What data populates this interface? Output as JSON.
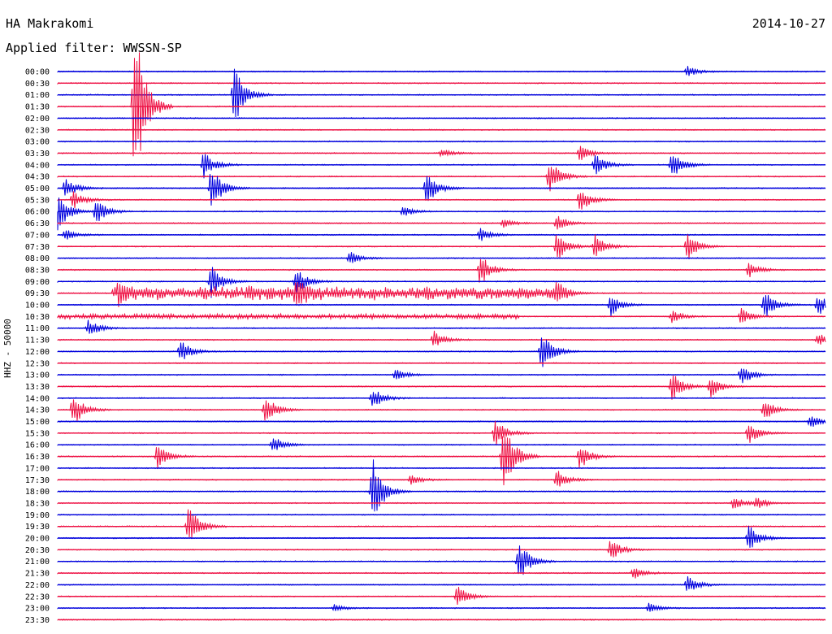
{
  "header": {
    "station": "HA Makrakomi",
    "date": "2014-10-27",
    "filter": "Applied filter: WWSSN-SP"
  },
  "chart_data": {
    "type": "line",
    "ylabel": "HHZ - 50000",
    "row_labels": [
      "00:00",
      "00:30",
      "01:00",
      "01:30",
      "02:00",
      "02:30",
      "03:00",
      "03:30",
      "04:00",
      "04:30",
      "05:00",
      "05:30",
      "06:00",
      "06:30",
      "07:00",
      "07:30",
      "08:00",
      "08:30",
      "09:00",
      "09:30",
      "10:00",
      "10:30",
      "11:00",
      "11:30",
      "12:00",
      "12:30",
      "13:00",
      "13:30",
      "14:00",
      "14:30",
      "15:00",
      "15:30",
      "16:00",
      "16:30",
      "17:00",
      "17:30",
      "18:00",
      "18:30",
      "19:00",
      "19:30",
      "20:00",
      "20:30",
      "21:00",
      "21:30",
      "22:00",
      "22:30",
      "23:00",
      "23:30"
    ],
    "colors": [
      "#0000dd",
      "#ee1144"
    ],
    "events": [
      {
        "row": 0,
        "x": 0.82,
        "amp": 0.5
      },
      {
        "row": 2,
        "x": 0.23,
        "amp": 3.0
      },
      {
        "row": 3,
        "x": 0.1,
        "amp": 8.0
      },
      {
        "row": 7,
        "x": 0.5,
        "amp": 0.4
      },
      {
        "row": 7,
        "x": 0.68,
        "amp": 0.7
      },
      {
        "row": 8,
        "x": 0.19,
        "amp": 1.2
      },
      {
        "row": 8,
        "x": 0.7,
        "amp": 1.0
      },
      {
        "row": 8,
        "x": 0.8,
        "amp": 1.3
      },
      {
        "row": 9,
        "x": 0.64,
        "amp": 1.6
      },
      {
        "row": 10,
        "x": 0.01,
        "amp": 1.0
      },
      {
        "row": 10,
        "x": 0.2,
        "amp": 2.0
      },
      {
        "row": 10,
        "x": 0.48,
        "amp": 1.7
      },
      {
        "row": 11,
        "x": 0.02,
        "amp": 0.8
      },
      {
        "row": 11,
        "x": 0.68,
        "amp": 1.1
      },
      {
        "row": 12,
        "x": 0.0,
        "amp": 1.8
      },
      {
        "row": 12,
        "x": 0.05,
        "amp": 1.2
      },
      {
        "row": 12,
        "x": 0.45,
        "amp": 0.5
      },
      {
        "row": 13,
        "x": 0.58,
        "amp": 0.4
      },
      {
        "row": 13,
        "x": 0.65,
        "amp": 0.8
      },
      {
        "row": 14,
        "x": 0.01,
        "amp": 0.5
      },
      {
        "row": 14,
        "x": 0.55,
        "amp": 0.6
      },
      {
        "row": 15,
        "x": 0.65,
        "amp": 1.3
      },
      {
        "row": 15,
        "x": 0.7,
        "amp": 1.1
      },
      {
        "row": 15,
        "x": 0.82,
        "amp": 1.2
      },
      {
        "row": 16,
        "x": 0.38,
        "amp": 0.6
      },
      {
        "row": 17,
        "x": 0.55,
        "amp": 1.5
      },
      {
        "row": 17,
        "x": 0.9,
        "amp": 0.7
      },
      {
        "row": 18,
        "x": 0.2,
        "amp": 1.4
      },
      {
        "row": 18,
        "x": 0.31,
        "amp": 1.3
      },
      {
        "row": 19,
        "x": 0.08,
        "amp": 0.9
      },
      {
        "row": 19,
        "x": 0.31,
        "amp": 1.0
      },
      {
        "row": 19,
        "x": 0.65,
        "amp": 1.2
      },
      {
        "row": 20,
        "x": 0.72,
        "amp": 1.0
      },
      {
        "row": 20,
        "x": 0.92,
        "amp": 1.3
      },
      {
        "row": 20,
        "x": 0.99,
        "amp": 1.0
      },
      {
        "row": 21,
        "x": 0.8,
        "amp": 0.6
      },
      {
        "row": 21,
        "x": 0.89,
        "amp": 0.7
      },
      {
        "row": 22,
        "x": 0.04,
        "amp": 0.8
      },
      {
        "row": 23,
        "x": 0.49,
        "amp": 0.8
      },
      {
        "row": 23,
        "x": 0.99,
        "amp": 0.6
      },
      {
        "row": 24,
        "x": 0.16,
        "amp": 1.0
      },
      {
        "row": 24,
        "x": 0.63,
        "amp": 2.0
      },
      {
        "row": 26,
        "x": 0.44,
        "amp": 0.6
      },
      {
        "row": 26,
        "x": 0.89,
        "amp": 1.0
      },
      {
        "row": 27,
        "x": 0.8,
        "amp": 1.3
      },
      {
        "row": 27,
        "x": 0.85,
        "amp": 1.0
      },
      {
        "row": 28,
        "x": 0.41,
        "amp": 1.0
      },
      {
        "row": 29,
        "x": 0.02,
        "amp": 1.5
      },
      {
        "row": 29,
        "x": 0.27,
        "amp": 1.4
      },
      {
        "row": 29,
        "x": 0.92,
        "amp": 1.0
      },
      {
        "row": 30,
        "x": 0.98,
        "amp": 0.6
      },
      {
        "row": 31,
        "x": 0.57,
        "amp": 1.3
      },
      {
        "row": 31,
        "x": 0.9,
        "amp": 1.0
      },
      {
        "row": 32,
        "x": 0.28,
        "amp": 0.8
      },
      {
        "row": 33,
        "x": 0.13,
        "amp": 1.2
      },
      {
        "row": 33,
        "x": 0.58,
        "amp": 3.5
      },
      {
        "row": 33,
        "x": 0.68,
        "amp": 1.2
      },
      {
        "row": 35,
        "x": 0.46,
        "amp": 0.5
      },
      {
        "row": 35,
        "x": 0.65,
        "amp": 0.9
      },
      {
        "row": 36,
        "x": 0.41,
        "amp": 3.0
      },
      {
        "row": 37,
        "x": 0.88,
        "amp": 0.6
      },
      {
        "row": 37,
        "x": 0.91,
        "amp": 0.5
      },
      {
        "row": 39,
        "x": 0.17,
        "amp": 2.0
      },
      {
        "row": 40,
        "x": 0.9,
        "amp": 1.2
      },
      {
        "row": 41,
        "x": 0.72,
        "amp": 1.0
      },
      {
        "row": 42,
        "x": 0.6,
        "amp": 2.0
      },
      {
        "row": 43,
        "x": 0.75,
        "amp": 0.6
      },
      {
        "row": 44,
        "x": 0.82,
        "amp": 0.8
      },
      {
        "row": 45,
        "x": 0.52,
        "amp": 1.0
      },
      {
        "row": 46,
        "x": 0.36,
        "amp": 0.3
      },
      {
        "row": 46,
        "x": 0.77,
        "amp": 0.4
      }
    ],
    "noise_bursts": [
      {
        "row": 19,
        "x_start": 0.07,
        "x_end": 0.65,
        "amp": 0.6
      },
      {
        "row": 21,
        "x_start": 0.0,
        "x_end": 0.6,
        "amp": 0.2
      }
    ]
  }
}
